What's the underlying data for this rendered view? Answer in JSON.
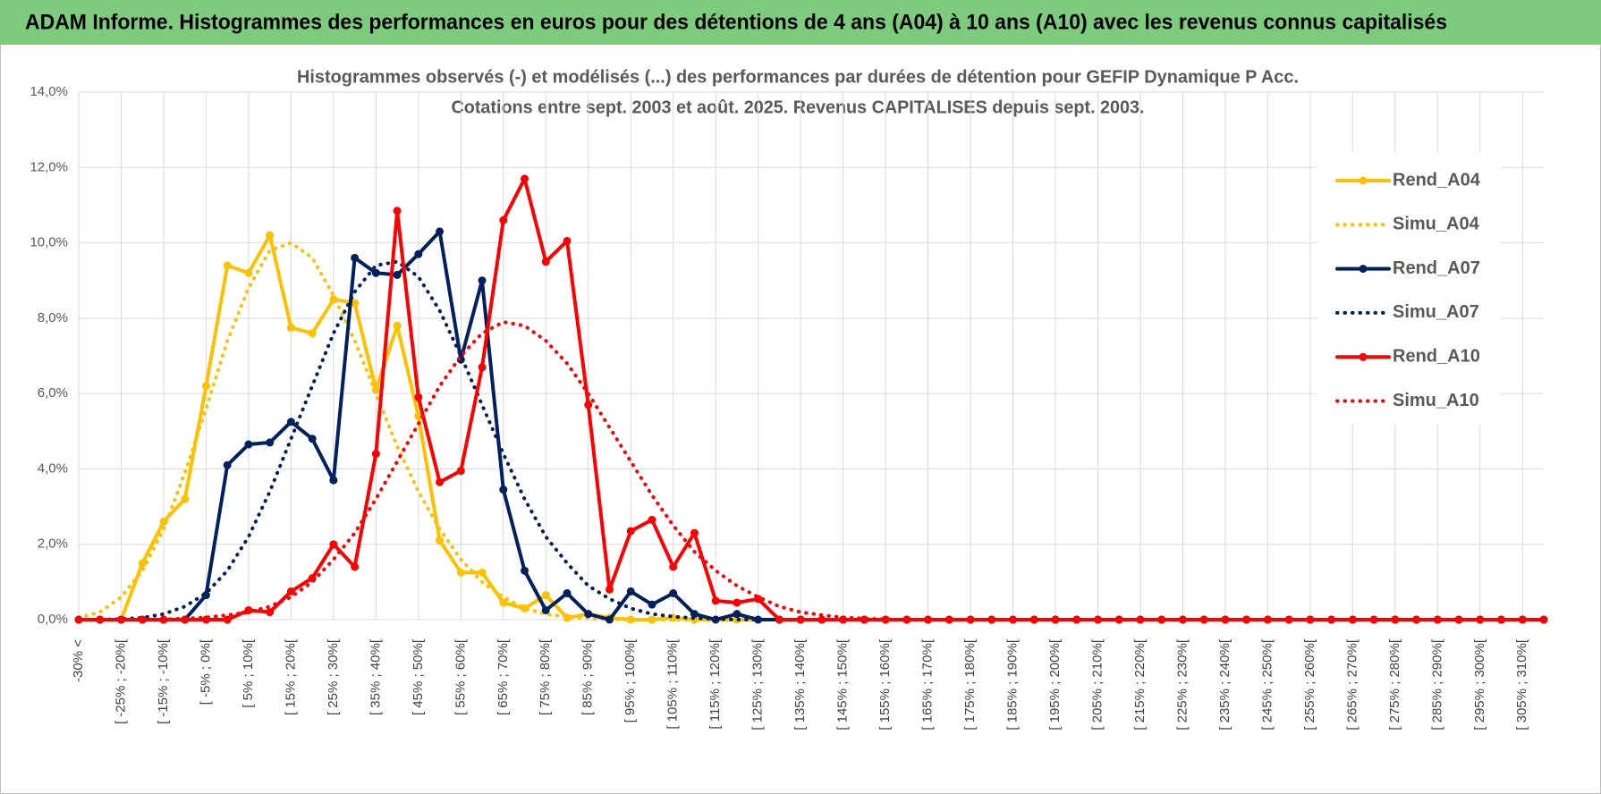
{
  "header": {
    "title": "ADAM Informe. Histogrammes des performances en euros pour des détentions de 4 ans (A04) à 10 ans (A10) avec les revenus connus capitalisés"
  },
  "chart_data": {
    "type": "line",
    "title": "Histogrammes observés (-) et modélisés (...) des performances par durées de détention pour GEFIP Dynamique P Acc.",
    "subtitle": "Cotations entre sept. 2003 et août. 2025. Revenus CAPITALISES depuis sept. 2003.",
    "categories": [
      "-30% <",
      null,
      "[ -25% ; -20%[",
      null,
      "[ -15% ; -10%[",
      null,
      "[ -5% ; 0%[",
      null,
      "[ 5% ; 10%[",
      null,
      "[ 15% ; 20%[",
      null,
      "[ 25% ; 30%[",
      null,
      "[ 35% ; 40%[",
      null,
      "[ 45% ; 50%[",
      null,
      "[ 55% ; 60%[",
      null,
      "[ 65% ; 70%[",
      null,
      "[ 75% ; 80%[",
      null,
      "[ 85% ; 90%[",
      null,
      "[ 95% ; 100%[",
      null,
      "[ 105% ; 110%[",
      null,
      "[ 115% ; 120%[",
      null,
      "[ 125% ; 130%[",
      null,
      "[ 135% ; 140%[",
      null,
      "[ 145% ; 150%[",
      null,
      "[ 155% ; 160%[",
      null,
      "[ 165% ; 170%[",
      null,
      "[ 175% ; 180%[",
      null,
      "[ 185% ; 190%[",
      null,
      "[ 195% ; 200%[",
      null,
      "[ 205% ; 210%[",
      null,
      "[ 215% ; 220%[",
      null,
      "[ 225% ; 230%[",
      null,
      "[ 235% ; 240%[",
      null,
      "[ 245% ; 250%[",
      null,
      "[ 255% ; 260%[",
      null,
      "[ 265% ; 270%[",
      null,
      "[ 275% ; 280%[",
      null,
      "[ 285% ; 290%[",
      null,
      "[ 295% ; 300%[",
      null,
      "[ 305% ; 310%[",
      null
    ],
    "series": [
      {
        "name": "Rend_A04",
        "color": "#ffc000",
        "style": "solid",
        "markers": true,
        "values": [
          0,
          0,
          0,
          1.5,
          2.6,
          3.2,
          6.2,
          9.4,
          9.2,
          10.2,
          7.75,
          7.6,
          8.5,
          8.4,
          6.1,
          7.8,
          5.4,
          2.1,
          1.25,
          1.25,
          0.45,
          0.3,
          0.65,
          0.05,
          0.15,
          0.05,
          0,
          0,
          0.05,
          0,
          0,
          0,
          0,
          0,
          0,
          0,
          0,
          0,
          0,
          0,
          0,
          0,
          0,
          0,
          0,
          0,
          0,
          0,
          0,
          0,
          0,
          0,
          0,
          0,
          0,
          0,
          0,
          0,
          0,
          0,
          0,
          0,
          0,
          0,
          0,
          0,
          0,
          0,
          0,
          0
        ]
      },
      {
        "name": "Simu_A04",
        "color": "#ffc000",
        "style": "dotted",
        "markers": false,
        "values": [
          0.05,
          0.2,
          0.6,
          1.3,
          2.4,
          3.9,
          5.6,
          7.4,
          8.8,
          9.8,
          10.0,
          9.6,
          8.6,
          7.4,
          6.0,
          4.6,
          3.4,
          2.4,
          1.6,
          1.0,
          0.6,
          0.3,
          0.15,
          0.07,
          0.03,
          0.01,
          0,
          0,
          0,
          0,
          0,
          0,
          0,
          0,
          0,
          0,
          0,
          0,
          0,
          0,
          0,
          0,
          0,
          0,
          0,
          0,
          0,
          0,
          0,
          0,
          0,
          0,
          0,
          0,
          0,
          0,
          0,
          0,
          0,
          0,
          0,
          0,
          0,
          0,
          0,
          0,
          0,
          0,
          0,
          0
        ]
      },
      {
        "name": "Rend_A07",
        "color": "#002060",
        "style": "solid",
        "markers": true,
        "values": [
          0,
          0,
          0,
          0,
          0,
          0,
          0.65,
          4.1,
          4.65,
          4.7,
          5.25,
          4.8,
          3.7,
          9.6,
          9.2,
          9.15,
          9.7,
          10.3,
          6.9,
          9.0,
          3.45,
          1.3,
          0.25,
          0.7,
          0.15,
          0,
          0.75,
          0.4,
          0.7,
          0.15,
          0,
          0.15,
          0,
          0,
          0,
          0,
          0,
          0,
          0,
          0,
          0,
          0,
          0,
          0,
          0,
          0,
          0,
          0,
          0,
          0,
          0,
          0,
          0,
          0,
          0,
          0,
          0,
          0,
          0,
          0,
          0,
          0,
          0,
          0,
          0,
          0,
          0,
          0,
          0,
          0
        ]
      },
      {
        "name": "Simu_A07",
        "color": "#002060",
        "style": "dotted",
        "markers": false,
        "values": [
          0,
          0,
          0.02,
          0.05,
          0.15,
          0.35,
          0.7,
          1.3,
          2.2,
          3.4,
          4.8,
          6.2,
          7.6,
          8.7,
          9.4,
          9.5,
          9.1,
          8.2,
          7.0,
          5.7,
          4.4,
          3.2,
          2.2,
          1.5,
          0.9,
          0.55,
          0.3,
          0.15,
          0.08,
          0.04,
          0.02,
          0,
          0,
          0,
          0,
          0,
          0,
          0,
          0,
          0,
          0,
          0,
          0,
          0,
          0,
          0,
          0,
          0,
          0,
          0,
          0,
          0,
          0,
          0,
          0,
          0,
          0,
          0,
          0,
          0,
          0,
          0,
          0,
          0,
          0,
          0,
          0,
          0,
          0,
          0
        ]
      },
      {
        "name": "Rend_A10",
        "color": "#ff0000",
        "style": "solid",
        "markers": true,
        "values": [
          0,
          0,
          0,
          0,
          0,
          0,
          0,
          0,
          0.25,
          0.2,
          0.75,
          1.1,
          2.0,
          1.4,
          4.4,
          10.85,
          5.9,
          3.65,
          3.95,
          6.7,
          10.6,
          11.7,
          9.5,
          10.05,
          5.7,
          0.8,
          2.35,
          2.65,
          1.4,
          2.3,
          0.5,
          0.45,
          0.55,
          0,
          0,
          0,
          0,
          0,
          0,
          0,
          0,
          0,
          0,
          0,
          0,
          0,
          0,
          0,
          0,
          0,
          0,
          0,
          0,
          0,
          0,
          0,
          0,
          0,
          0,
          0,
          0,
          0,
          0,
          0,
          0,
          0,
          0,
          0,
          0,
          0
        ]
      },
      {
        "name": "Simu_A10",
        "color": "#ff0000",
        "style": "dotted",
        "markers": false,
        "values": [
          0,
          0,
          0,
          0,
          0.01,
          0.03,
          0.06,
          0.12,
          0.2,
          0.35,
          0.6,
          1.0,
          1.6,
          2.3,
          3.2,
          4.2,
          5.2,
          6.2,
          7.0,
          7.6,
          7.9,
          7.8,
          7.4,
          6.8,
          6.0,
          5.1,
          4.2,
          3.3,
          2.5,
          1.8,
          1.3,
          0.9,
          0.6,
          0.35,
          0.2,
          0.12,
          0.06,
          0.03,
          0.01,
          0,
          0,
          0,
          0,
          0,
          0,
          0,
          0,
          0,
          0,
          0,
          0,
          0,
          0,
          0,
          0,
          0,
          0,
          0,
          0,
          0,
          0,
          0,
          0,
          0,
          0,
          0,
          0,
          0,
          0,
          0
        ]
      }
    ],
    "ylim": [
      0,
      14
    ],
    "yticks": [
      {
        "value": 0,
        "label": "0,0%"
      },
      {
        "value": 2,
        "label": "2,0%"
      },
      {
        "value": 4,
        "label": "4,0%"
      },
      {
        "value": 6,
        "label": "6,0%"
      },
      {
        "value": 8,
        "label": "8,0%"
      },
      {
        "value": 10,
        "label": "10,0%"
      },
      {
        "value": 12,
        "label": "12,0%"
      },
      {
        "value": 14,
        "label": "14,0%"
      }
    ],
    "grid": true,
    "legend": "right"
  }
}
